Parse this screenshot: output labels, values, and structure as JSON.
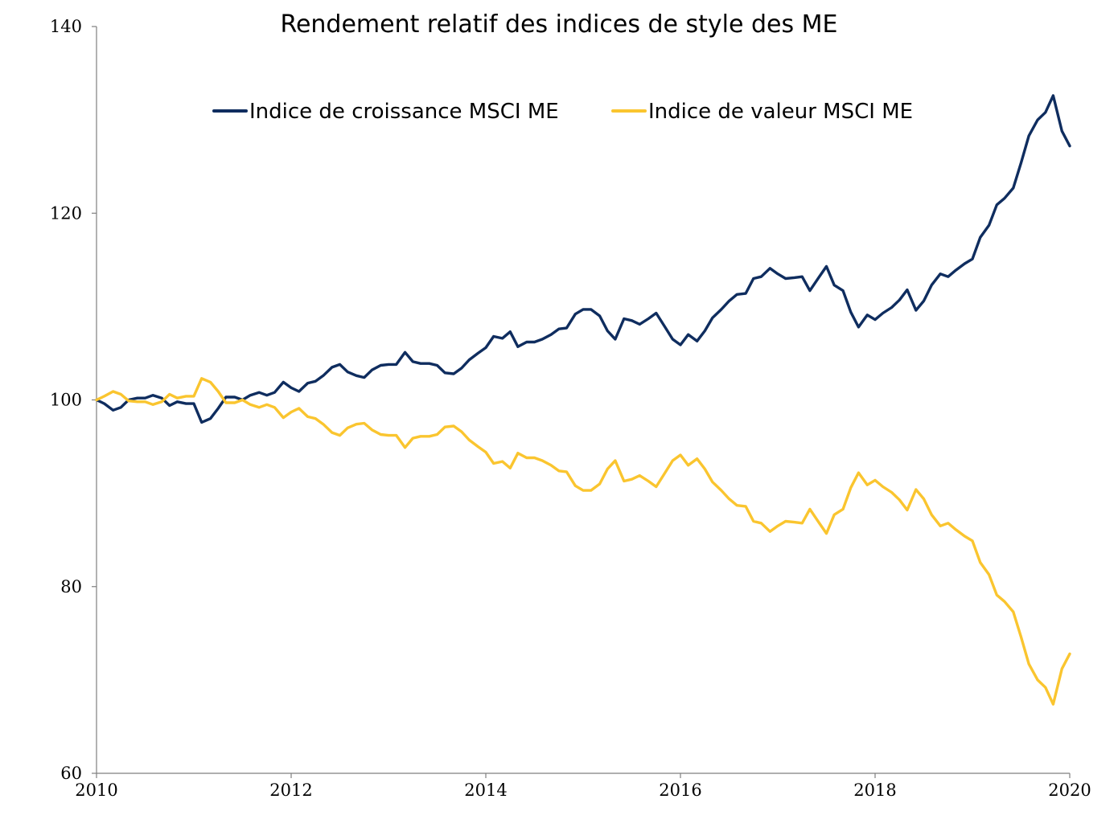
{
  "chart_data": {
    "type": "line",
    "title": "Rendement relatif des indices de style des ME",
    "xlabel": "",
    "ylabel": "",
    "xlim": [
      2010,
      2020
    ],
    "ylim": [
      60,
      140
    ],
    "x_ticks": [
      "2010",
      "2012",
      "2014",
      "2016",
      "2018",
      "2020"
    ],
    "y_ticks": [
      "60",
      "80",
      "100",
      "120",
      "140"
    ],
    "grid": false,
    "legend": "top-center",
    "series": [
      {
        "name": "Indice de croissance MSCI ME",
        "color": "#0f2d5f",
        "x": [
          2010.0,
          2010.08,
          2010.17,
          2010.25,
          2010.33,
          2010.42,
          2010.5,
          2010.58,
          2010.67,
          2010.75,
          2010.83,
          2010.92,
          2011.0,
          2011.08,
          2011.17,
          2011.25,
          2011.33,
          2011.42,
          2011.5,
          2011.58,
          2011.67,
          2011.75,
          2011.83,
          2011.92,
          2012.0,
          2012.08,
          2012.17,
          2012.25,
          2012.33,
          2012.42,
          2012.5,
          2012.58,
          2012.67,
          2012.75,
          2012.83,
          2012.92,
          2013.0,
          2013.08,
          2013.17,
          2013.25,
          2013.33,
          2013.42,
          2013.5,
          2013.58,
          2013.67,
          2013.75,
          2013.83,
          2013.92,
          2014.0,
          2014.08,
          2014.17,
          2014.25,
          2014.33,
          2014.42,
          2014.5,
          2014.58,
          2014.67,
          2014.75,
          2014.83,
          2014.92,
          2015.0,
          2015.08,
          2015.17,
          2015.25,
          2015.33,
          2015.42,
          2015.5,
          2015.58,
          2015.67,
          2015.75,
          2015.83,
          2015.92,
          2016.0,
          2016.08,
          2016.17,
          2016.25,
          2016.33,
          2016.42,
          2016.5,
          2016.58,
          2016.67,
          2016.75,
          2016.83,
          2016.92,
          2017.0,
          2017.08,
          2017.17,
          2017.25,
          2017.33,
          2017.42,
          2017.5,
          2017.58,
          2017.67,
          2017.75,
          2017.83,
          2017.92,
          2018.0,
          2018.08,
          2018.17,
          2018.25,
          2018.33,
          2018.42,
          2018.5,
          2018.58,
          2018.67,
          2018.75,
          2018.83,
          2018.92,
          2019.0,
          2019.08,
          2019.17,
          2019.25,
          2019.33,
          2019.42,
          2019.5,
          2019.58,
          2019.67,
          2019.75,
          2019.83,
          2019.92,
          2020.0
        ],
        "values": [
          100.0,
          99.6,
          98.9,
          99.2,
          100.0,
          100.2,
          100.2,
          100.5,
          100.2,
          99.4,
          99.8,
          99.6,
          99.6,
          97.6,
          98.0,
          99.1,
          100.3,
          100.3,
          100.0,
          100.5,
          100.8,
          100.5,
          100.8,
          101.9,
          101.3,
          100.9,
          101.8,
          102.0,
          102.6,
          103.5,
          103.8,
          103.0,
          102.6,
          102.4,
          103.2,
          103.7,
          103.8,
          103.8,
          105.1,
          104.1,
          103.9,
          103.9,
          103.7,
          102.9,
          102.8,
          103.4,
          104.3,
          105.0,
          105.6,
          106.8,
          106.6,
          107.3,
          105.7,
          106.2,
          106.2,
          106.5,
          107.0,
          107.6,
          107.7,
          109.2,
          109.7,
          109.7,
          109.0,
          107.4,
          106.5,
          108.7,
          108.5,
          108.1,
          108.7,
          109.3,
          108.0,
          106.5,
          105.9,
          107.0,
          106.3,
          107.4,
          108.8,
          109.7,
          110.6,
          111.3,
          111.4,
          113.0,
          113.2,
          114.1,
          113.5,
          113.0,
          113.1,
          113.2,
          111.7,
          113.1,
          114.3,
          112.3,
          111.7,
          109.4,
          107.8,
          109.1,
          108.6,
          109.3,
          109.9,
          110.7,
          111.8,
          109.6,
          110.6,
          112.3,
          113.5,
          113.2,
          113.9,
          114.6,
          115.1,
          117.4,
          118.7,
          120.9,
          121.6,
          122.7,
          125.4,
          128.3,
          130.0,
          130.8,
          132.6,
          128.8,
          127.2
        ]
      },
      {
        "name": "Indice de valeur MSCI ME",
        "color": "#fac52f",
        "x": [
          2010.0,
          2010.08,
          2010.17,
          2010.25,
          2010.33,
          2010.42,
          2010.5,
          2010.58,
          2010.67,
          2010.75,
          2010.83,
          2010.92,
          2011.0,
          2011.08,
          2011.17,
          2011.25,
          2011.33,
          2011.42,
          2011.5,
          2011.58,
          2011.67,
          2011.75,
          2011.83,
          2011.92,
          2012.0,
          2012.08,
          2012.17,
          2012.25,
          2012.33,
          2012.42,
          2012.5,
          2012.58,
          2012.67,
          2012.75,
          2012.83,
          2012.92,
          2013.0,
          2013.08,
          2013.17,
          2013.25,
          2013.33,
          2013.42,
          2013.5,
          2013.58,
          2013.67,
          2013.75,
          2013.83,
          2013.92,
          2014.0,
          2014.08,
          2014.17,
          2014.25,
          2014.33,
          2014.42,
          2014.5,
          2014.58,
          2014.67,
          2014.75,
          2014.83,
          2014.92,
          2015.0,
          2015.08,
          2015.17,
          2015.25,
          2015.33,
          2015.42,
          2015.5,
          2015.58,
          2015.67,
          2015.75,
          2015.83,
          2015.92,
          2016.0,
          2016.08,
          2016.17,
          2016.25,
          2016.33,
          2016.42,
          2016.5,
          2016.58,
          2016.67,
          2016.75,
          2016.83,
          2016.92,
          2017.0,
          2017.08,
          2017.17,
          2017.25,
          2017.33,
          2017.42,
          2017.5,
          2017.58,
          2017.67,
          2017.75,
          2017.83,
          2017.92,
          2018.0,
          2018.08,
          2018.17,
          2018.25,
          2018.33,
          2018.42,
          2018.5,
          2018.58,
          2018.67,
          2018.75,
          2018.83,
          2018.92,
          2019.0,
          2019.08,
          2019.17,
          2019.25,
          2019.33,
          2019.42,
          2019.5,
          2019.58,
          2019.67,
          2019.75,
          2019.83,
          2019.92,
          2020.0
        ],
        "values": [
          100.0,
          100.4,
          100.9,
          100.6,
          99.9,
          99.8,
          99.8,
          99.5,
          99.8,
          100.6,
          100.2,
          100.4,
          100.4,
          102.3,
          101.9,
          100.9,
          99.7,
          99.7,
          100.0,
          99.5,
          99.2,
          99.5,
          99.2,
          98.1,
          98.7,
          99.1,
          98.2,
          98.0,
          97.4,
          96.5,
          96.2,
          97.0,
          97.4,
          97.5,
          96.8,
          96.3,
          96.2,
          96.2,
          94.9,
          95.9,
          96.1,
          96.1,
          96.3,
          97.1,
          97.2,
          96.6,
          95.7,
          95.0,
          94.4,
          93.2,
          93.4,
          92.7,
          94.3,
          93.8,
          93.8,
          93.5,
          93.0,
          92.4,
          92.3,
          90.8,
          90.3,
          90.3,
          91.0,
          92.6,
          93.5,
          91.3,
          91.5,
          91.9,
          91.3,
          90.7,
          92.0,
          93.5,
          94.1,
          93.0,
          93.7,
          92.6,
          91.2,
          90.3,
          89.4,
          88.7,
          88.6,
          87.0,
          86.8,
          85.9,
          86.5,
          87.0,
          86.9,
          86.8,
          88.3,
          86.9,
          85.7,
          87.7,
          88.3,
          90.6,
          92.2,
          90.9,
          91.4,
          90.7,
          90.1,
          89.3,
          88.2,
          90.4,
          89.4,
          87.7,
          86.5,
          86.8,
          86.1,
          85.4,
          84.9,
          82.6,
          81.3,
          79.1,
          78.4,
          77.3,
          74.6,
          71.7,
          70.0,
          69.2,
          67.4,
          71.2,
          72.8
        ]
      }
    ]
  },
  "colors": {
    "axis": "#7f7f7f",
    "background": "#ffffff"
  }
}
